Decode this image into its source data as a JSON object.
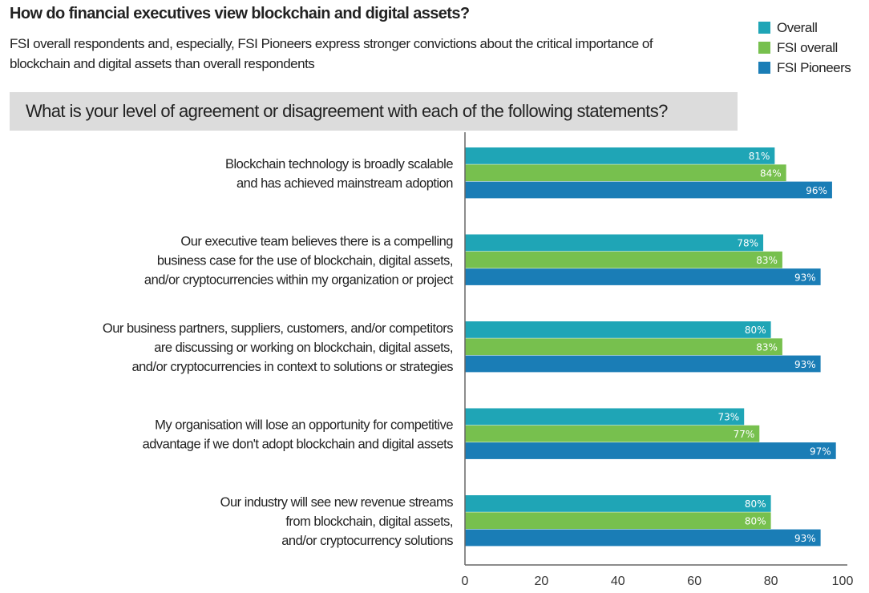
{
  "chart_data": {
    "type": "bar",
    "orientation": "horizontal",
    "title": "How do financial executives view blockchain and digital assets?",
    "subtitle": "FSI overall respondents and, especially, FSI Pioneers express stronger convictions about the critical importance of blockchain and digital assets than overall respondents",
    "question": "What is your level of agreement or disagreement with each of the following statements?",
    "categories": [
      [
        "Blockchain technology is broadly scalable",
        "and has achieved mainstream adoption"
      ],
      [
        "Our executive team believes there is a compelling",
        "business case for the use of blockchain, digital assets,",
        "and/or cryptocurrencies within my organization or project"
      ],
      [
        "Our business partners, suppliers, customers, and/or competitors",
        "are discussing or working on blockchain, digital assets,",
        "and/or cryptocurrencies in context to solutions or strategies"
      ],
      [
        "My organisation will lose an opportunity for competitive",
        "advantage if we don't adopt blockchain and digital assets"
      ],
      [
        "Our industry will see new revenue streams",
        "from blockchain, digital assets,",
        "and/or cryptocurrency solutions"
      ]
    ],
    "series": [
      {
        "name": "Overall",
        "color": "#1fa5b6",
        "values": [
          81,
          78,
          80,
          73,
          80
        ]
      },
      {
        "name": "FSI overall",
        "color": "#77c04e",
        "values": [
          84,
          83,
          83,
          77,
          80
        ]
      },
      {
        "name": "FSI Pioneers",
        "color": "#1a7db6",
        "values": [
          96,
          93,
          93,
          97,
          93
        ]
      }
    ],
    "data_label_suffix": "%",
    "xlim": [
      0,
      100
    ],
    "xticks": [
      0,
      20,
      40,
      60,
      80,
      100
    ],
    "grid": false,
    "legend_position": "top-right"
  }
}
